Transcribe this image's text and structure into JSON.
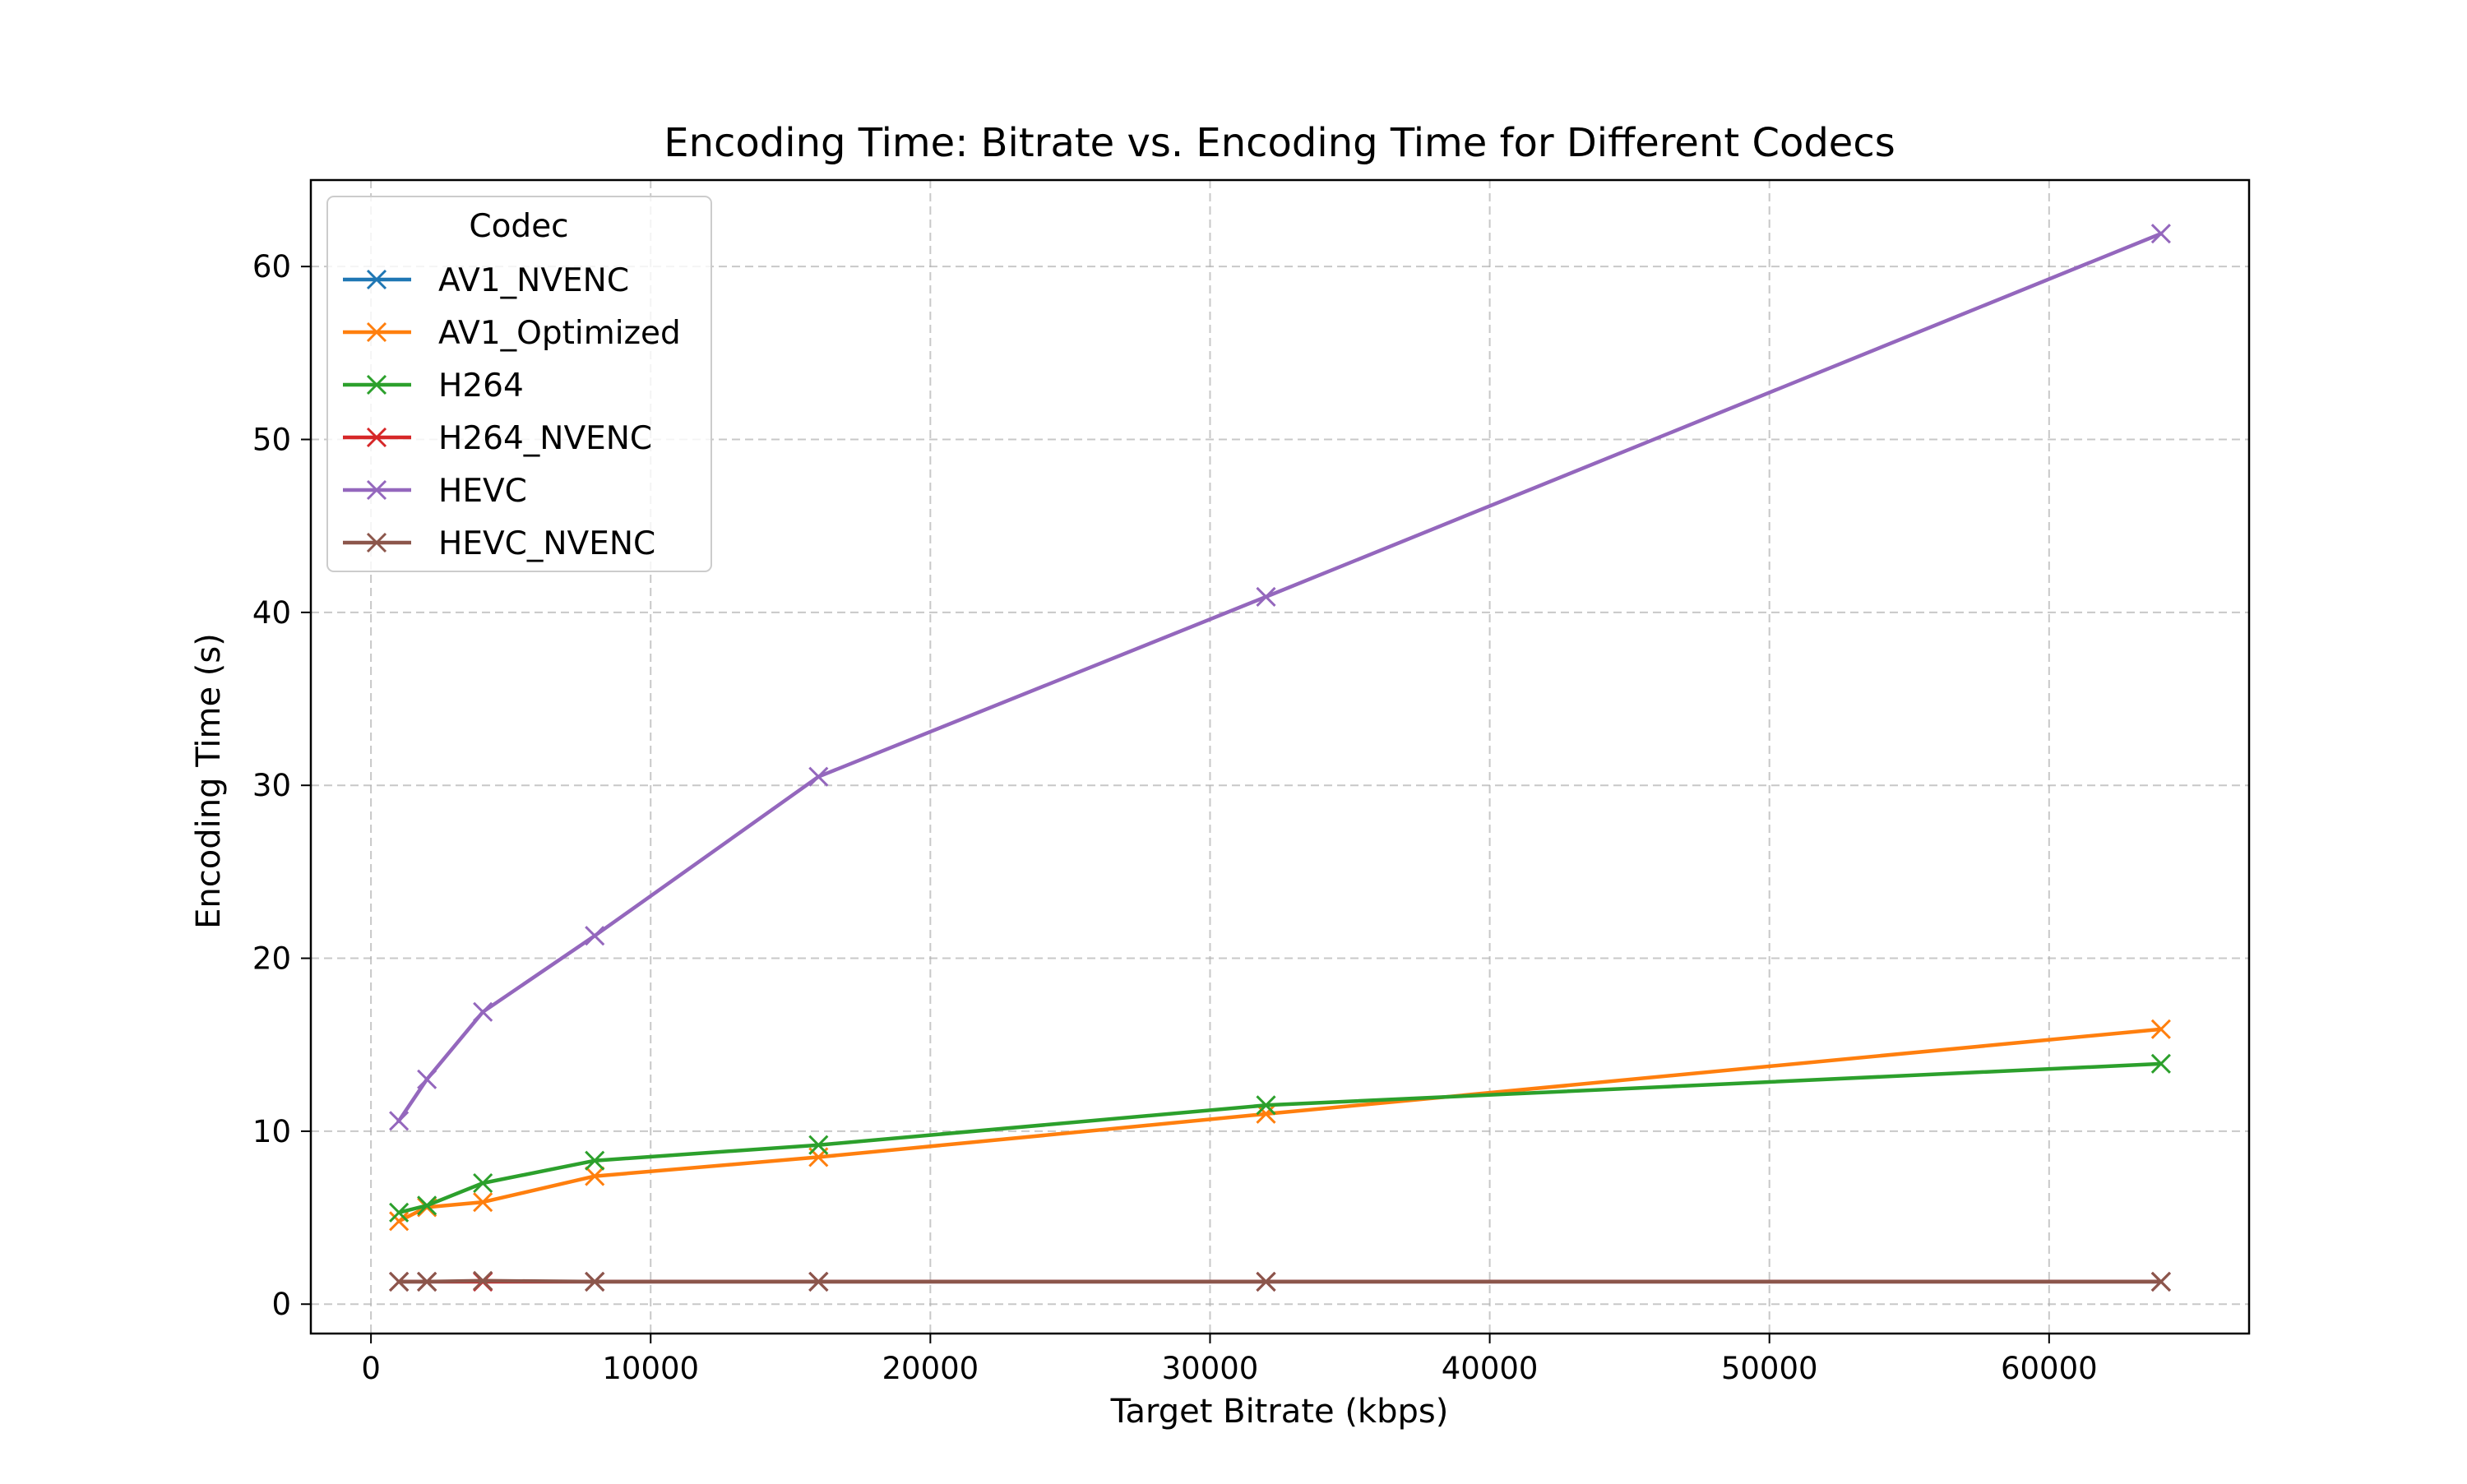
{
  "chart_data": {
    "type": "line",
    "title": "Encoding Time: Bitrate vs. Encoding Time for Different Codecs",
    "xlabel": "Target Bitrate (kbps)",
    "ylabel": "Encoding Time (s)",
    "xlim": [
      -2150,
      67150
    ],
    "ylim": [
      -1.7,
      65
    ],
    "xticks": [
      0,
      10000,
      20000,
      30000,
      40000,
      50000,
      60000
    ],
    "yticks": [
      0,
      10,
      20,
      30,
      40,
      50,
      60
    ],
    "xtick_labels": [
      "0",
      "10000",
      "20000",
      "30000",
      "40000",
      "50000",
      "60000"
    ],
    "ytick_labels": [
      "0",
      "10",
      "20",
      "30",
      "40",
      "50",
      "60"
    ],
    "grid": true,
    "marker": "x",
    "legend": {
      "title": "Codec",
      "placement": "top-left"
    },
    "x": [
      1000,
      2000,
      4000,
      8000,
      16000,
      32000,
      64000
    ],
    "series": [
      {
        "name": "AV1_NVENC",
        "color": "#1f77b4",
        "values": [
          1.3,
          1.3,
          1.3,
          1.3,
          1.3,
          1.3,
          1.3
        ]
      },
      {
        "name": "AV1_Optimized",
        "color": "#ff7f0e",
        "values": [
          4.8,
          5.6,
          5.9,
          7.4,
          8.5,
          11.0,
          15.9
        ]
      },
      {
        "name": "H264",
        "color": "#2ca02c",
        "values": [
          5.3,
          5.7,
          7.0,
          8.3,
          9.2,
          11.5,
          13.9
        ]
      },
      {
        "name": "H264_NVENC",
        "color": "#d62728",
        "values": [
          1.3,
          1.3,
          1.3,
          1.3,
          1.3,
          1.3,
          1.3
        ]
      },
      {
        "name": "HEVC",
        "color": "#9467bd",
        "values": [
          10.6,
          13.0,
          16.9,
          21.3,
          30.5,
          40.9,
          61.9
        ]
      },
      {
        "name": "HEVC_NVENC",
        "color": "#8c564b",
        "values": [
          1.3,
          1.3,
          1.35,
          1.3,
          1.3,
          1.3,
          1.3
        ]
      }
    ]
  }
}
